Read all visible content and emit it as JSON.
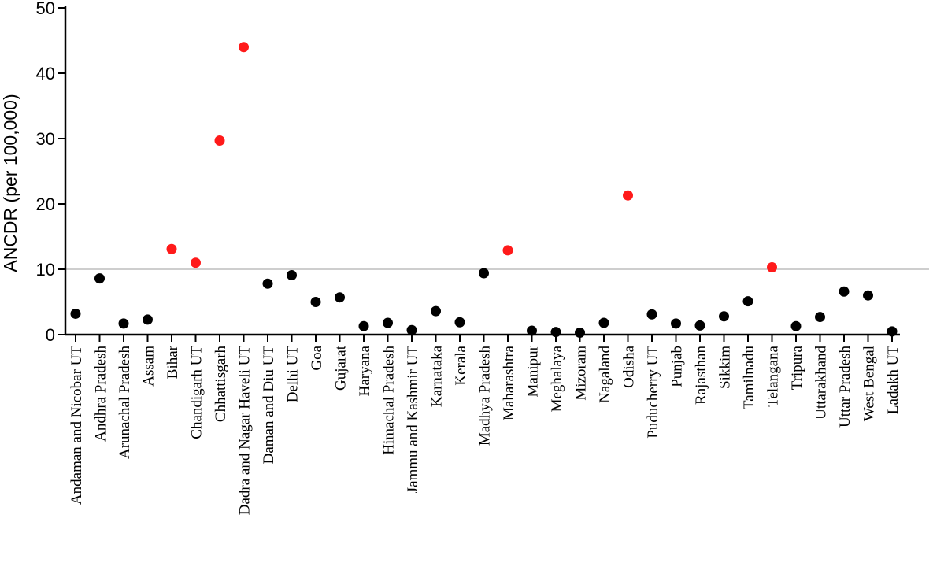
{
  "chart_data": {
    "type": "scatter",
    "title": "",
    "xlabel": "",
    "ylabel": "ANCDR (per 100,000)",
    "ylim": [
      0,
      50
    ],
    "yticks": [
      0,
      10,
      20,
      30,
      40,
      50
    ],
    "threshold": 10,
    "grid": false,
    "colors": {
      "above_threshold": "#ff1a1a",
      "below_threshold": "#000000",
      "reference_line": "#b0b0b0"
    },
    "categories": [
      "Andaman and Nicobar UT",
      "Andhra Pradesh",
      "Arunachal Pradesh",
      "Assam",
      "Bihar",
      "Chandigarh UT",
      "Chhattisgarh",
      "Dadra and Nagar Haveli UT",
      "Daman and Diu UT",
      "Delhi UT",
      "Goa",
      "Gujarat",
      "Haryana",
      "Himachal Pradesh",
      "Jammu and Kashmir UT",
      "Karnataka",
      "Kerala",
      "Madhya Pradesh",
      "Maharashtra",
      "Manipur",
      "Meghalaya",
      "Mizoram",
      "Nagaland",
      "Odisha",
      "Puducherry UT",
      "Punjab",
      "Rajasthan",
      "Sikkim",
      "Tamilnadu",
      "Telangana",
      "Tripura",
      "Uttarakhand",
      "Uttar Pradesh",
      "West Bengal",
      "Ladakh UT"
    ],
    "values": [
      3.2,
      8.6,
      1.7,
      2.3,
      13.1,
      11.0,
      29.7,
      44.0,
      7.8,
      9.1,
      5.0,
      5.7,
      1.3,
      1.8,
      0.7,
      3.6,
      1.9,
      9.4,
      12.9,
      0.6,
      0.4,
      0.3,
      1.8,
      21.3,
      3.1,
      1.7,
      1.4,
      2.8,
      5.1,
      10.3,
      1.3,
      2.7,
      6.6,
      6.0,
      0.5
    ]
  }
}
